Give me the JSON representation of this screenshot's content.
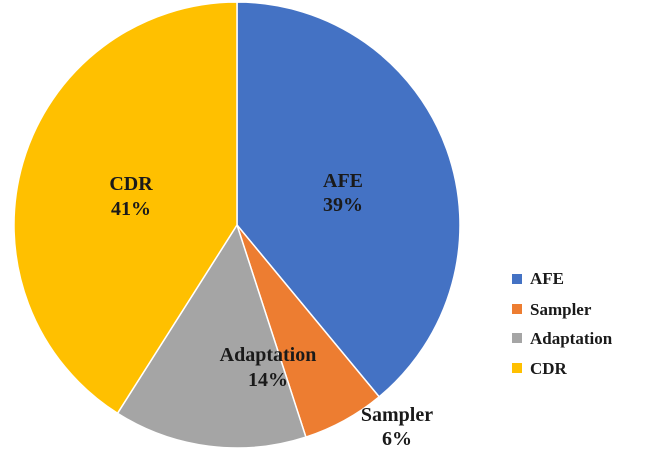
{
  "chart_data": {
    "type": "pie",
    "categories": [
      "AFE",
      "Sampler",
      "Adaptation",
      "CDR"
    ],
    "values": [
      39,
      6,
      14,
      41
    ],
    "value_labels": [
      "39%",
      "6%",
      "14%",
      "41%"
    ],
    "colors": [
      "#4472C4",
      "#ED7D31",
      "#A5A5A5",
      "#FFC000"
    ],
    "start_angle_deg": 0,
    "direction": "clockwise",
    "legend": {
      "placement": "right",
      "entries": [
        "AFE",
        "Sampler",
        "Adaptation",
        "CDR"
      ]
    }
  }
}
